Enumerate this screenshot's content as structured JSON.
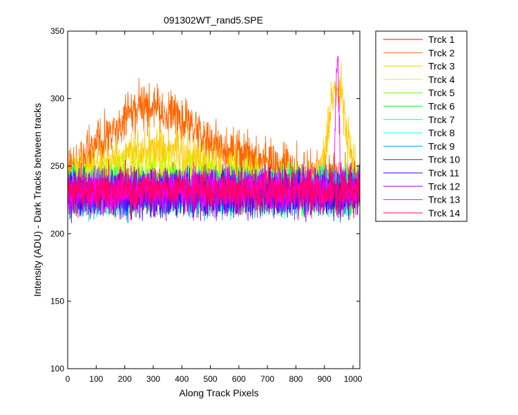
{
  "chart_data": {
    "type": "line",
    "title": "091302WT_rand5.SPE",
    "xlabel": "Along Track Pixels",
    "ylabel": "Intensity (ADU) - Dark Tracks between tracks",
    "xlim": [
      0,
      1024
    ],
    "ylim": [
      100,
      350
    ],
    "xticks": [
      0,
      100,
      200,
      300,
      400,
      500,
      600,
      700,
      800,
      900,
      1000
    ],
    "yticks": [
      100,
      150,
      200,
      250,
      300,
      350
    ],
    "grid": false,
    "legend_position": "outside-right",
    "n_points_per_series": 1024,
    "series": [
      {
        "name": "Trck 1",
        "color": "#FF0000",
        "baseline": 232,
        "noise": 14,
        "peaks": []
      },
      {
        "name": "Trck 2",
        "color": "#FF6600",
        "baseline": 240,
        "noise": 16,
        "peaks": [
          {
            "center": 290,
            "amplitude": 52,
            "width": 150
          },
          {
            "center": 620,
            "amplitude": 12,
            "width": 140
          }
        ]
      },
      {
        "name": "Trck 3",
        "color": "#FFCC00",
        "baseline": 236,
        "noise": 15,
        "peaks": [
          {
            "center": 300,
            "amplitude": 26,
            "width": 180
          },
          {
            "center": 945,
            "amplitude": 75,
            "width": 30
          }
        ]
      },
      {
        "name": "Trck 4",
        "color": "#CCFF00",
        "baseline": 234,
        "noise": 15,
        "peaks": [
          {
            "center": 300,
            "amplitude": 12,
            "width": 200
          }
        ]
      },
      {
        "name": "Trck 5",
        "color": "#66FF00",
        "baseline": 232,
        "noise": 14,
        "peaks": []
      },
      {
        "name": "Trck 6",
        "color": "#00FF33",
        "baseline": 232,
        "noise": 14,
        "peaks": []
      },
      {
        "name": "Trck 7",
        "color": "#00FF99",
        "baseline": 231,
        "noise": 14,
        "peaks": []
      },
      {
        "name": "Trck 8",
        "color": "#00FFFF",
        "baseline": 231,
        "noise": 14,
        "peaks": []
      },
      {
        "name": "Trck 9",
        "color": "#0099FF",
        "baseline": 230,
        "noise": 14,
        "peaks": []
      },
      {
        "name": "Trck 10",
        "color": "#0033FF",
        "baseline": 230,
        "noise": 14,
        "peaks": []
      },
      {
        "name": "Trck 11",
        "color": "#3300FF",
        "baseline": 230,
        "noise": 14,
        "peaks": []
      },
      {
        "name": "Trck 12",
        "color": "#9900FF",
        "baseline": 231,
        "noise": 14,
        "peaks": []
      },
      {
        "name": "Trck 13",
        "color": "#FF00FF",
        "baseline": 232,
        "noise": 14,
        "peaks": [
          {
            "center": 945,
            "amplitude": 100,
            "width": 6
          }
        ]
      },
      {
        "name": "Trck 14",
        "color": "#FF0066",
        "baseline": 232,
        "noise": 14,
        "peaks": []
      }
    ]
  }
}
